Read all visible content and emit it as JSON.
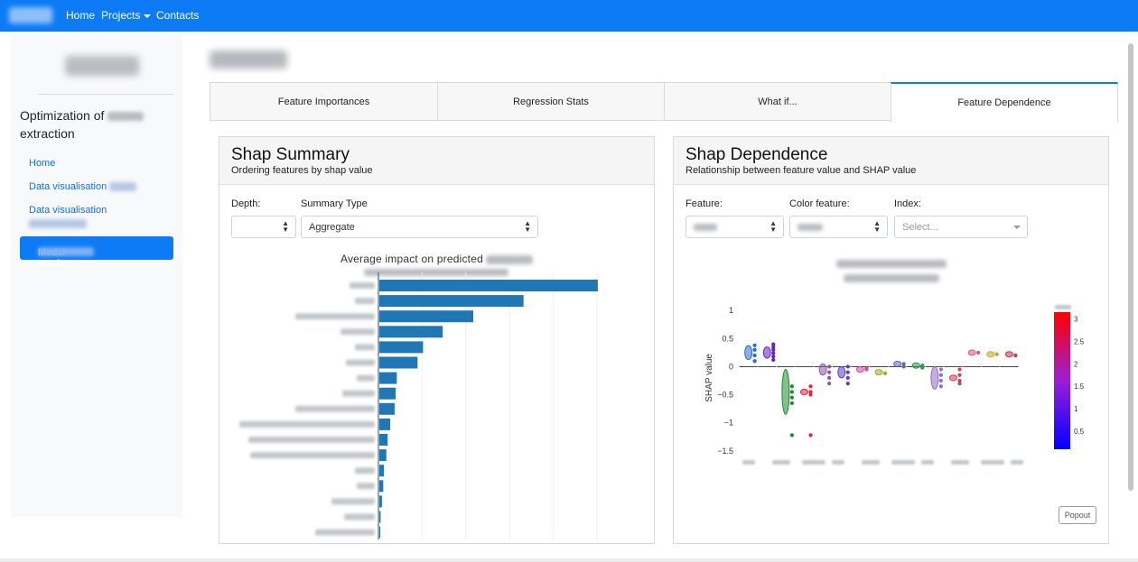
{
  "navbar": {
    "links": [
      "Home",
      "Projects",
      "Contacts"
    ]
  },
  "sidebar": {
    "title_prefix": "Optimization of",
    "title_suffix": "extraction",
    "items": [
      {
        "label": "Home"
      },
      {
        "label": "Data visualisation"
      },
      {
        "label": "Data visualisation"
      },
      {
        "label": "Model results"
      }
    ]
  },
  "tabs": [
    {
      "label": "Feature Importances",
      "active": false
    },
    {
      "label": "Regression Stats",
      "active": false
    },
    {
      "label": "What if...",
      "active": false
    },
    {
      "label": "Feature Dependence",
      "active": true
    }
  ],
  "shap_summary": {
    "title": "Shap Summary",
    "subtitle": "Ordering features by shap value",
    "depth_label": "Depth:",
    "depth_value": "",
    "summary_type_label": "Summary Type",
    "summary_type_value": "Aggregate",
    "chart_title": "Average impact on predicted"
  },
  "shap_dependence": {
    "title": "Shap Dependence",
    "subtitle": "Relationship between feature value and SHAP value",
    "feature_label": "Feature:",
    "color_feature_label": "Color feature:",
    "index_label": "Index:",
    "index_placeholder": "Select...",
    "ylabel": "SHAP value",
    "popout_label": "Popout"
  },
  "colors": {
    "navbar": "#0d7bf6",
    "bar": "#1f77b4",
    "accent_link": "#0d6efd"
  },
  "chart_data": [
    {
      "type": "bar",
      "orientation": "horizontal",
      "title": "Average impact on predicted",
      "categories": [
        "",
        "",
        "",
        "",
        "",
        "",
        "",
        "",
        "",
        "",
        "",
        "",
        "",
        "",
        "",
        "",
        ""
      ],
      "values": [
        100,
        66,
        43,
        29,
        20,
        17.5,
        8,
        7.5,
        7,
        5,
        3.8,
        3.2,
        2.1,
        1.8,
        1.2,
        0.6,
        0.3
      ],
      "xlim": [
        0,
        105
      ]
    },
    {
      "type": "scatter",
      "ylabel": "SHAP value",
      "yticks": [
        1,
        0.5,
        0,
        -0.5,
        -1,
        -1.5
      ],
      "ylim": [
        -1.6,
        1.1
      ],
      "colorbar_ticks": [
        3,
        2.5,
        2,
        1.5,
        1,
        0.5
      ],
      "colorscale": "blue-purple-red",
      "groups": [
        {
          "center": 0.25,
          "spread": 0.25,
          "color": "#2a6bc7",
          "points": [
            0.1,
            0.2,
            0.3,
            0.38
          ]
        },
        {
          "center": 0.25,
          "spread": 0.2,
          "color": "#5f23c9",
          "points": [
            0.12,
            0.18,
            0.24,
            0.3,
            0.35,
            0.4
          ]
        },
        {
          "center": -0.45,
          "spread": 0.8,
          "color": "#1c8a2e",
          "points": [
            -0.45,
            -0.35,
            -0.55,
            -0.65,
            -1.22
          ]
        },
        {
          "center": -0.45,
          "spread": 0.1,
          "color": "#e0253a",
          "points": [
            -0.35,
            -0.45,
            -0.5,
            -1.22
          ]
        },
        {
          "center": -0.05,
          "spread": 0.2,
          "color": "#8a55a8",
          "points": [
            0.0,
            -0.1,
            -0.2,
            -0.3
          ]
        },
        {
          "center": -0.1,
          "spread": 0.2,
          "color": "#5b3cc4",
          "points": [
            0.0,
            -0.1,
            -0.2,
            -0.3
          ]
        },
        {
          "center": -0.05,
          "spread": 0.05,
          "color": "#d04aa4",
          "points": [
            -0.03,
            -0.05
          ]
        },
        {
          "center": -0.1,
          "spread": 0.05,
          "color": "#9aad2a",
          "points": [
            -0.12
          ]
        },
        {
          "center": 0.05,
          "spread": 0.05,
          "color": "#5a67c8",
          "points": [
            0.05,
            0.0
          ]
        },
        {
          "center": 0.02,
          "spread": 0.05,
          "color": "#2a9a52",
          "points": [
            0.02,
            -0.02
          ]
        },
        {
          "center": -0.2,
          "spread": 0.4,
          "color": "#8f6ec8",
          "points": [
            -0.05,
            -0.15,
            -0.25,
            -0.35
          ]
        },
        {
          "center": -0.2,
          "spread": 0.1,
          "color": "#d83a58",
          "points": [
            -0.05,
            -0.15,
            -0.25,
            -0.3
          ]
        },
        {
          "center": 0.25,
          "spread": 0.05,
          "color": "#e0557a",
          "points": [
            0.25
          ]
        },
        {
          "center": 0.22,
          "spread": 0.05,
          "color": "#c4a52a",
          "points": [
            0.22
          ]
        },
        {
          "center": 0.22,
          "spread": 0.05,
          "color": "#c83048",
          "points": [
            0.2
          ]
        }
      ]
    }
  ]
}
